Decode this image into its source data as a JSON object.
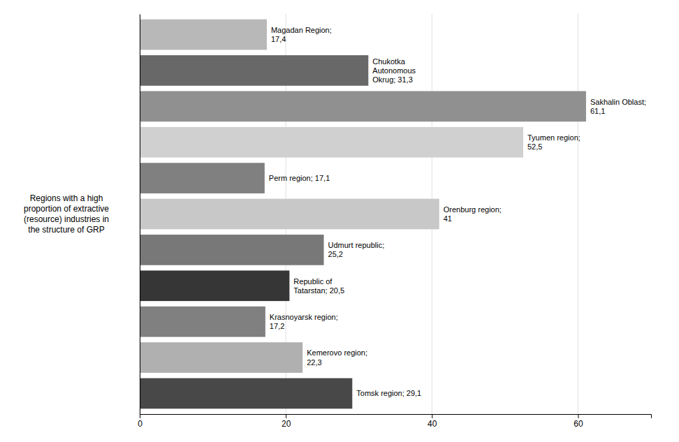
{
  "chart_data": {
    "type": "bar",
    "orientation": "horizontal",
    "categories": [
      null,
      null,
      null,
      null,
      null,
      null,
      null,
      null,
      null,
      null,
      null
    ],
    "values": [
      17.4,
      31.3,
      61.1,
      52.5,
      17.1,
      41.0,
      25.2,
      20.5,
      17.2,
      22.3,
      29.1
    ],
    "value_labels": [
      "Magadan Region;\n17,4",
      "Chukotka\nAutonomous\nOkrug; 31,3",
      "Sakhalin Oblast;\n61,1",
      "Tyumen region;\n52,5",
      "Perm region; 17,1",
      "Orenburg region;\n41",
      "Udmurt republic;\n25,2",
      "Republic of\nTatarstan; 20,5",
      "Krasnoyarsk region;\n17,2",
      "Kemerovo region;\n22,3",
      "Tomsk region; 29,1"
    ],
    "colors": [
      "#b8b8b8",
      "#686868",
      "#909090",
      "#d0d0d0",
      "#808080",
      "#c8c8c8",
      "#787878",
      "#363636",
      "#808080",
      "#b0b0b0",
      "#484848"
    ],
    "data_labels": true,
    "ylabel": "Regions with a high\nproportion of extractive\n(resource) industries in\nthe structure of GRP",
    "xlim": [
      0,
      70
    ],
    "xticks": [
      0,
      20,
      40,
      60
    ],
    "grid": true,
    "tick_labels": "x"
  }
}
